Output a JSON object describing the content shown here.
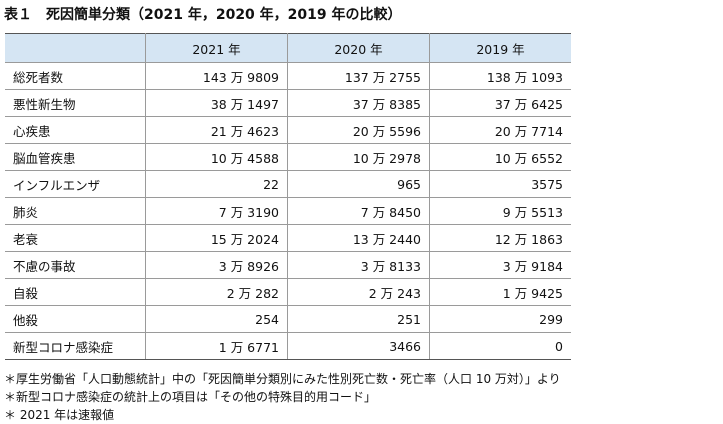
{
  "header": {
    "title": "表１　死因簡単分類（2021 年，2020 年，2019 年の比較）"
  },
  "table": {
    "columns": [
      "",
      "2021 年",
      "2020 年",
      "2019 年"
    ],
    "rows": [
      [
        "総死者数",
        "143 万 9809",
        "137 万 2755",
        "138 万 1093"
      ],
      [
        "悪性新生物",
        "38 万 1497",
        "37 万 8385",
        "37 万 6425"
      ],
      [
        "心疾患",
        "21 万 4623",
        "20 万 5596",
        "20 万 7714"
      ],
      [
        "脳血管疾患",
        "10 万 4588",
        "10 万 2978",
        "10 万 6552"
      ],
      [
        "インフルエンザ",
        "22",
        "965",
        "3575"
      ],
      [
        "肺炎",
        "7 万 3190",
        "7 万 8450",
        "9 万 5513"
      ],
      [
        "老衰",
        "15 万 2024",
        "13 万 2440",
        "12 万 1863"
      ],
      [
        "不慮の事故",
        "3 万 8926",
        "3 万 8133",
        "3 万 9184"
      ],
      [
        "自殺",
        "2 万 282",
        "2 万 243",
        "1 万 9425"
      ],
      [
        "他殺",
        "254",
        "251",
        "299"
      ],
      [
        "新型コロナ感染症",
        "1 万 6771",
        "3466",
        "0"
      ]
    ]
  },
  "notes": [
    "＊厚生労働省「人口動態統計」中の「死因簡単分類別にみた性別死亡数・死亡率（人口 10 万対）」より",
    "＊新型コロナ感染症の統計上の項目は「その他の特殊目的用コード」",
    "＊ 2021 年は速報値"
  ]
}
